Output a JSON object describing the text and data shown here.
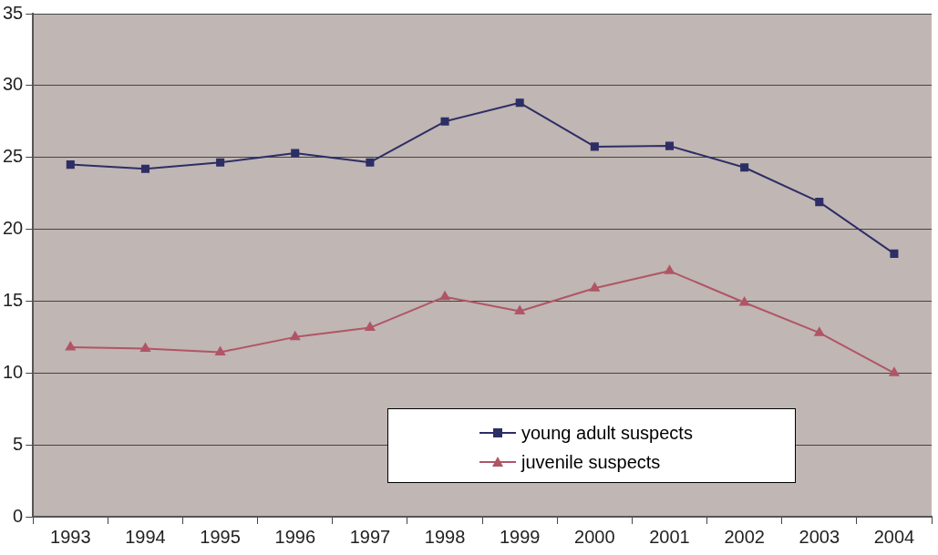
{
  "chart_data": {
    "type": "line",
    "categories": [
      "1993",
      "1994",
      "1995",
      "1996",
      "1997",
      "1998",
      "1999",
      "2000",
      "2001",
      "2002",
      "2003",
      "2004"
    ],
    "series": [
      {
        "name": "young adult suspects",
        "color": "#2e2e66",
        "marker": "square",
        "values": [
          24.5,
          24.2,
          24.65,
          25.3,
          24.65,
          27.5,
          28.8,
          25.75,
          25.8,
          24.3,
          21.9,
          18.3
        ]
      },
      {
        "name": "juvenile suspects",
        "color": "#b05566",
        "marker": "triangle",
        "values": [
          11.8,
          11.7,
          11.45,
          12.5,
          13.15,
          15.3,
          14.3,
          15.9,
          17.1,
          14.9,
          12.8,
          10.0
        ]
      }
    ],
    "ylim": [
      0,
      35
    ],
    "yticks": [
      0,
      5,
      10,
      15,
      20,
      25,
      30,
      35
    ],
    "grid": "y",
    "legend": "bottom",
    "line_style": "solid"
  }
}
